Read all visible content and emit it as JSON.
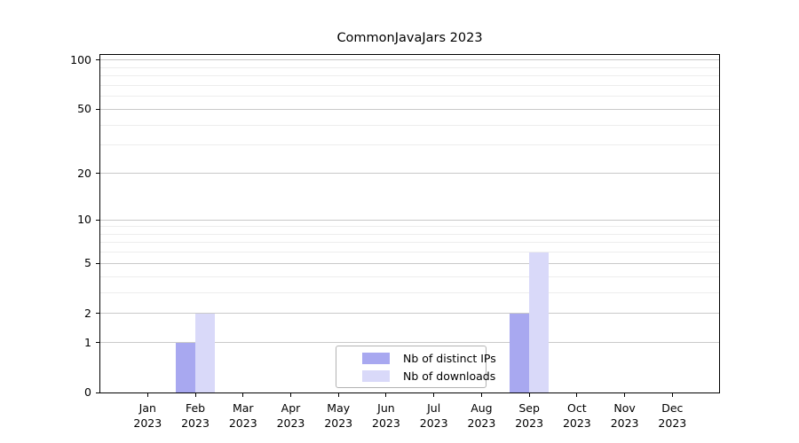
{
  "chart_data": {
    "type": "bar",
    "title": "CommonJavaJars 2023",
    "categories": [
      {
        "month": "Jan",
        "year": "2023"
      },
      {
        "month": "Feb",
        "year": "2023"
      },
      {
        "month": "Mar",
        "year": "2023"
      },
      {
        "month": "Apr",
        "year": "2023"
      },
      {
        "month": "May",
        "year": "2023"
      },
      {
        "month": "Jun",
        "year": "2023"
      },
      {
        "month": "Jul",
        "year": "2023"
      },
      {
        "month": "Aug",
        "year": "2023"
      },
      {
        "month": "Sep",
        "year": "2023"
      },
      {
        "month": "Oct",
        "year": "2023"
      },
      {
        "month": "Nov",
        "year": "2023"
      },
      {
        "month": "Dec",
        "year": "2023"
      }
    ],
    "series": [
      {
        "name": "Nb of distinct IPs",
        "color": "#a8a8f0",
        "values": [
          0,
          1,
          0,
          0,
          0,
          0,
          0,
          0,
          2,
          0,
          0,
          0
        ]
      },
      {
        "name": "Nb of downloads",
        "color": "#d9d9f9",
        "values": [
          0,
          2,
          0,
          0,
          0,
          0,
          0,
          0,
          6,
          0,
          0,
          0
        ]
      }
    ],
    "y_axis": {
      "scale": "log1p",
      "major_ticks": [
        0,
        1,
        2,
        5,
        10,
        20,
        50,
        100
      ],
      "minor_ticks": [
        3,
        4,
        6,
        7,
        8,
        9,
        30,
        40,
        60,
        70,
        80,
        90
      ],
      "ylim": [
        0,
        107.5
      ]
    },
    "legend": {
      "position": "bottom-center"
    },
    "grid": {
      "major_color": "#c9c9c9",
      "minor_color": "#ededed"
    },
    "axis_color": "#000000"
  }
}
